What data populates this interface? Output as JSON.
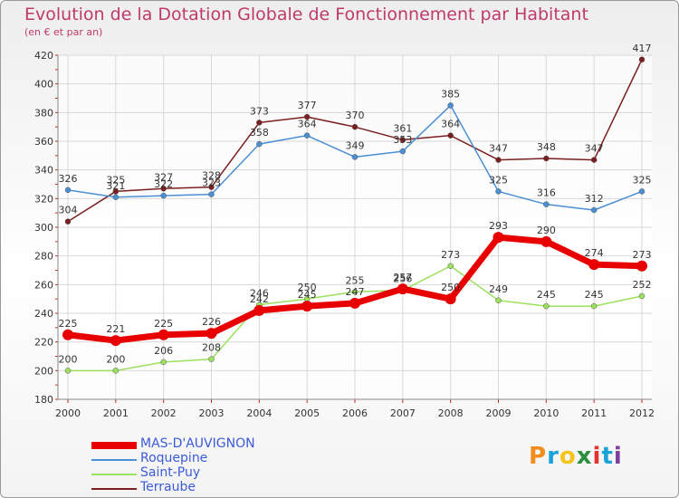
{
  "title": "Evolution de la Dotation Globale de Fonctionnement par Habitant",
  "subtitle": "(en € et par an)",
  "brand": {
    "text": "Proxiti",
    "colors": [
      "#f28c1c",
      "#1aa3d9",
      "#f5c518",
      "#2a8f3f",
      "#e0342e",
      "#1aa3d9",
      "#7b3fa0"
    ]
  },
  "chart_data": {
    "type": "line",
    "x": [
      "2000",
      "2001",
      "2002",
      "2003",
      "2004",
      "2005",
      "2006",
      "2007",
      "2008",
      "2009",
      "2010",
      "2011",
      "2012"
    ],
    "ylim": [
      180,
      420
    ],
    "yticks": [
      180,
      200,
      220,
      240,
      260,
      280,
      300,
      320,
      340,
      360,
      380,
      400,
      420
    ],
    "grid": true,
    "legend_position": "bottom-left",
    "series": [
      {
        "name": "Terraube",
        "color": "#7a1f1f",
        "width": 1.5,
        "marker": 3,
        "labels": true,
        "values": [
          304,
          325,
          327,
          328,
          373,
          377,
          370,
          361,
          364,
          347,
          348,
          347,
          417
        ]
      },
      {
        "name": "Roquepine",
        "color": "#4a8fd4",
        "width": 1.5,
        "marker": 3,
        "labels": true,
        "values": [
          326,
          321,
          322,
          323,
          358,
          364,
          349,
          353,
          385,
          325,
          316,
          312,
          325
        ]
      },
      {
        "name": "Saint-Puy",
        "color": "#9be05e",
        "width": 1.5,
        "marker": 3,
        "labels": true,
        "values": [
          200,
          200,
          206,
          208,
          246,
          250,
          255,
          256,
          273,
          249,
          245,
          245,
          252
        ]
      },
      {
        "name": "MAS-D'AUVIGNON",
        "color": "#e80000",
        "width": 7,
        "marker": 6,
        "labels": true,
        "values": [
          225,
          221,
          225,
          226,
          242,
          245,
          247,
          257,
          250,
          293,
          290,
          274,
          273
        ]
      }
    ]
  }
}
